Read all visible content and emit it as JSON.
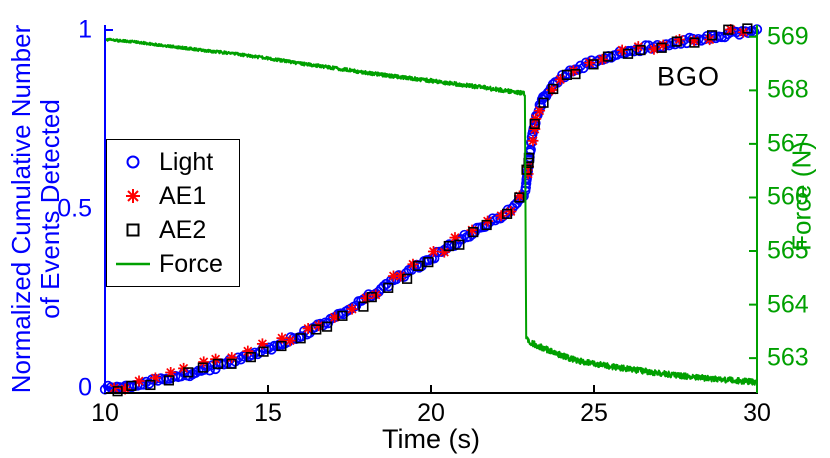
{
  "figure": {
    "annotation": "BGO",
    "xlabel": "Time (s)",
    "ylabel_left_line1": "Normalized Cumulative Number",
    "ylabel_left_line2": "of Events Detected",
    "ylabel_right": "Force (N)"
  },
  "legend": {
    "items": [
      {
        "label": "Light",
        "marker": "circle",
        "color": "#0000ff"
      },
      {
        "label": "AE1",
        "marker": "asterisk",
        "color": "#ff0000"
      },
      {
        "label": "AE2",
        "marker": "square",
        "color": "#000000"
      },
      {
        "label": "Force",
        "marker": "line",
        "color": "#00a000"
      }
    ]
  },
  "chart_data": {
    "type": "line",
    "title": "",
    "xlabel": "Time (s)",
    "ylabel_left": "Normalized Cumulative Number of Events Detected",
    "ylabel_right": "Force (N)",
    "xlim": [
      10,
      30
    ],
    "xticks": [
      10,
      15,
      20,
      25,
      30
    ],
    "ylim_left": [
      -0.014,
      1.014
    ],
    "yticks_left": [
      "0",
      "0.5",
      "1"
    ],
    "yticks_left_values": [
      0,
      0.5,
      1
    ],
    "ylim_right": [
      562.35,
      569.22
    ],
    "yticks_right": [
      563,
      564,
      565,
      566,
      567,
      568,
      569
    ],
    "axis_colors": {
      "left": "#0000ff",
      "right": "#00a000",
      "bottom": "#000000"
    },
    "annotation": {
      "text": "BGO",
      "x": 27.9,
      "y": 0.87
    },
    "series": [
      {
        "name": "Light",
        "yaxis": "left",
        "marker": "circle",
        "color": "#0000ff",
        "marker_count": 270,
        "jitter": 0.007,
        "curve": [
          [
            10,
            0
          ],
          [
            10.5,
            0.004
          ],
          [
            11,
            0.01
          ],
          [
            11.5,
            0.018
          ],
          [
            12,
            0.027
          ],
          [
            12.5,
            0.038
          ],
          [
            13,
            0.05
          ],
          [
            13.5,
            0.063
          ],
          [
            14,
            0.078
          ],
          [
            14.5,
            0.094
          ],
          [
            15,
            0.11
          ],
          [
            15.5,
            0.128
          ],
          [
            16,
            0.148
          ],
          [
            16.5,
            0.17
          ],
          [
            17,
            0.195
          ],
          [
            17.5,
            0.222
          ],
          [
            18,
            0.25
          ],
          [
            18.5,
            0.28
          ],
          [
            19,
            0.308
          ],
          [
            19.5,
            0.335
          ],
          [
            20,
            0.363
          ],
          [
            20.5,
            0.392
          ],
          [
            21,
            0.42
          ],
          [
            21.5,
            0.447
          ],
          [
            22,
            0.473
          ],
          [
            22.4,
            0.495
          ],
          [
            22.7,
            0.52
          ],
          [
            22.9,
            0.55
          ],
          [
            23,
            0.63
          ],
          [
            23.1,
            0.7
          ],
          [
            23.25,
            0.765
          ],
          [
            23.45,
            0.81
          ],
          [
            23.7,
            0.845
          ],
          [
            24,
            0.868
          ],
          [
            24.5,
            0.893
          ],
          [
            25,
            0.912
          ],
          [
            25.5,
            0.927
          ],
          [
            26,
            0.94
          ],
          [
            26.5,
            0.95
          ],
          [
            27,
            0.958
          ],
          [
            27.5,
            0.966
          ],
          [
            28,
            0.973
          ],
          [
            28.5,
            0.98
          ],
          [
            29,
            0.987
          ],
          [
            29.5,
            0.994
          ],
          [
            30,
            1
          ]
        ]
      },
      {
        "name": "AE1",
        "yaxis": "left",
        "marker": "asterisk",
        "color": "#ff0000",
        "marker_count": 50,
        "jitter": 0.012,
        "curve": [
          [
            10.2,
            0
          ],
          [
            10.8,
            0.008
          ],
          [
            11.3,
            0.02
          ],
          [
            12,
            0.045
          ],
          [
            12.6,
            0.058
          ],
          [
            13.2,
            0.072
          ],
          [
            14,
            0.095
          ],
          [
            14.8,
            0.118
          ],
          [
            15.5,
            0.135
          ],
          [
            16.2,
            0.163
          ],
          [
            17,
            0.2
          ],
          [
            18,
            0.252
          ],
          [
            19,
            0.312
          ],
          [
            20,
            0.368
          ],
          [
            21,
            0.425
          ],
          [
            22,
            0.475
          ],
          [
            22.6,
            0.515
          ],
          [
            22.9,
            0.555
          ],
          [
            23.05,
            0.66
          ],
          [
            23.2,
            0.74
          ],
          [
            23.5,
            0.805
          ],
          [
            23.9,
            0.85
          ],
          [
            24.5,
            0.885
          ],
          [
            25,
            0.908
          ],
          [
            26,
            0.937
          ],
          [
            26.6,
            0.947
          ],
          [
            27.5,
            0.962
          ],
          [
            28.3,
            0.973
          ],
          [
            29,
            0.99
          ],
          [
            29.6,
            1
          ]
        ]
      },
      {
        "name": "AE2",
        "yaxis": "left",
        "marker": "square",
        "color": "#000000",
        "marker_count": 46,
        "jitter": 0.009,
        "curve": [
          [
            10.4,
            0
          ],
          [
            11.2,
            0.012
          ],
          [
            12,
            0.028
          ],
          [
            12.8,
            0.045
          ],
          [
            13.6,
            0.065
          ],
          [
            14.4,
            0.088
          ],
          [
            15.2,
            0.115
          ],
          [
            16,
            0.145
          ],
          [
            16.8,
            0.178
          ],
          [
            17.6,
            0.218
          ],
          [
            18.4,
            0.262
          ],
          [
            19.2,
            0.308
          ],
          [
            20,
            0.36
          ],
          [
            20.8,
            0.402
          ],
          [
            21.6,
            0.442
          ],
          [
            22.3,
            0.487
          ],
          [
            22.8,
            0.535
          ],
          [
            23,
            0.64
          ],
          [
            23.2,
            0.75
          ],
          [
            23.5,
            0.81
          ],
          [
            24,
            0.862
          ],
          [
            24.7,
            0.895
          ],
          [
            25.5,
            0.92
          ],
          [
            26.5,
            0.942
          ],
          [
            27.5,
            0.962
          ],
          [
            28.3,
            0.974
          ],
          [
            28.9,
            0.99
          ],
          [
            29.6,
            1
          ]
        ]
      },
      {
        "name": "Force",
        "yaxis": "right",
        "marker": "none",
        "color": "#00a000",
        "line_width": 2,
        "noise": {
          "base": 0.022,
          "grow": 0.018,
          "after": 0.055,
          "drop_time": 22.9
        },
        "curve": [
          [
            10,
            568.95
          ],
          [
            11,
            568.9
          ],
          [
            12,
            568.82
          ],
          [
            13,
            568.75
          ],
          [
            14,
            568.68
          ],
          [
            15,
            568.6
          ],
          [
            16,
            568.5
          ],
          [
            17,
            568.42
          ],
          [
            18,
            568.33
          ],
          [
            19,
            568.25
          ],
          [
            20,
            568.18
          ],
          [
            21,
            568.1
          ],
          [
            22,
            568.02
          ],
          [
            22.6,
            567.97
          ],
          [
            22.88,
            567.94
          ],
          [
            22.92,
            563.35
          ],
          [
            23.2,
            563.25
          ],
          [
            23.6,
            563.15
          ],
          [
            24,
            563.05
          ],
          [
            24.5,
            562.95
          ],
          [
            25,
            562.9
          ],
          [
            26,
            562.8
          ],
          [
            27,
            562.72
          ],
          [
            28,
            562.65
          ],
          [
            29,
            562.6
          ],
          [
            30,
            562.55
          ]
        ]
      }
    ]
  }
}
